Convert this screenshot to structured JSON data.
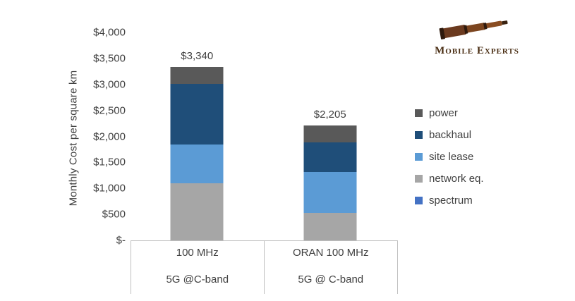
{
  "logo": {
    "name": "Mobile Experts"
  },
  "chart_data": {
    "type": "bar",
    "stacked": true,
    "title": "",
    "xlabel": "",
    "ylabel": "Monthly Cost per square km",
    "ylim": [
      0,
      4000
    ],
    "ytick_step": 500,
    "ytick_labels": [
      "$-",
      "$500",
      "$1,000",
      "$1,500",
      "$2,000",
      "$2,500",
      "$3,000",
      "$3,500",
      "$4,000"
    ],
    "grid": false,
    "legend_position": "right",
    "categories": [
      {
        "line1": "100 MHz",
        "line2": "5G @C-band",
        "total": 3340,
        "total_label": "$3,340"
      },
      {
        "line1": "ORAN 100 MHz",
        "line2": "5G @ C-band",
        "total": 2205,
        "total_label": "$2,205"
      }
    ],
    "series": [
      {
        "name": "spectrum",
        "color": "#4472C4",
        "values": [
          0,
          0
        ]
      },
      {
        "name": "network eq.",
        "color": "#A6A6A6",
        "values": [
          1100,
          525
        ]
      },
      {
        "name": "site lease",
        "color": "#5B9BD5",
        "values": [
          745,
          790
        ]
      },
      {
        "name": "backhaul",
        "color": "#1F4E79",
        "values": [
          1165,
          570
        ]
      },
      {
        "name": "power",
        "color": "#595959",
        "values": [
          330,
          320
        ]
      }
    ],
    "legend": [
      "power",
      "backhaul",
      "site lease",
      "network eq.",
      "spectrum"
    ]
  }
}
